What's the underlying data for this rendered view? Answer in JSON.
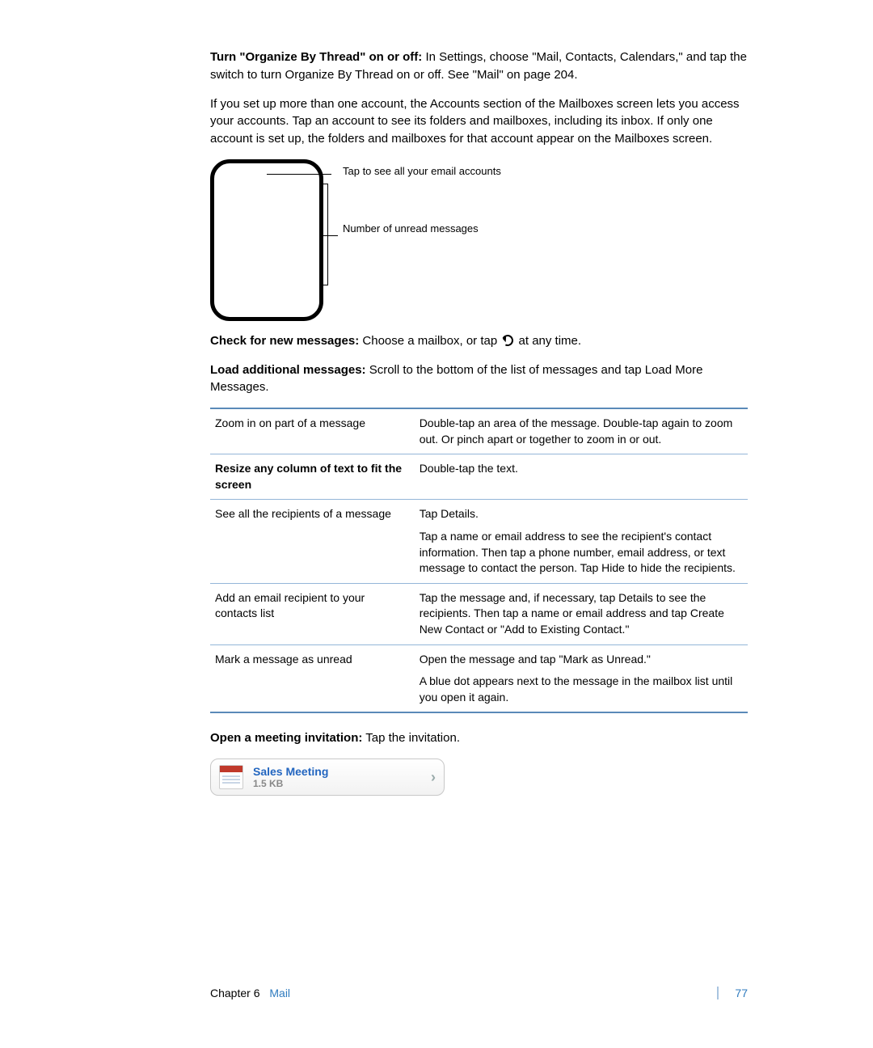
{
  "paragraphs": {
    "p1_bold": "Turn \"Organize By Thread\" on or off:",
    "p1_rest": " In Settings, choose \"Mail, Contacts, Calendars,\" and tap the switch to turn Organize By Thread on or off. See \"Mail\" on page 204.",
    "p2": "If you set up more than one account, the Accounts section of the Mailboxes screen lets you access your accounts. Tap an account to see its folders and mailboxes, including its inbox. If only one account is set up, the folders and mailboxes for that account appear on the Mailboxes screen.",
    "callout1": "Tap to see all your email accounts",
    "callout2": "Number of unread messages",
    "check_bold": "Check for new messages:",
    "check_rest_a": " Choose a mailbox, or tap ",
    "check_rest_b": " at any time.",
    "load_bold": "Load additional messages:",
    "load_rest": " Scroll to the bottom of the list of messages and tap Load More Messages.",
    "open_bold": "Open a meeting invitation:",
    "open_rest": " Tap the invitation."
  },
  "table": {
    "rows": [
      {
        "left": "Zoom in on part of a message",
        "left_bold": false,
        "right": [
          "Double-tap an area of the message. Double-tap again to zoom out. Or pinch apart or together to zoom in or out."
        ]
      },
      {
        "left": "Resize any column of text to fit the screen",
        "left_bold": true,
        "right": [
          "Double-tap the text."
        ]
      },
      {
        "left": "See all the recipients of a message",
        "left_bold": false,
        "right": [
          "Tap Details.",
          "Tap a name or email address to see the recipient's contact information. Then tap a phone number, email address, or text message to contact the person. Tap Hide to hide the recipients."
        ]
      },
      {
        "left": "Add an email recipient to your contacts list",
        "left_bold": false,
        "right": [
          "Tap the message and, if necessary, tap Details to see the recipients. Then tap a name or email address and tap Create New Contact or \"Add to Existing Contact.\""
        ]
      },
      {
        "left": "Mark a message as unread",
        "left_bold": false,
        "right": [
          "Open the message and tap \"Mark as Unread.\"",
          "A blue dot       appears next to the message in the mailbox list until you open it again."
        ]
      }
    ],
    "border_color_light": "#94b6d8",
    "border_color_heavy": "#5a8ab8"
  },
  "meeting": {
    "title": "Sales Meeting",
    "size": "1.5 KB",
    "title_color": "#2366c0"
  },
  "footer": {
    "chapter_label": "Chapter 6",
    "chapter_name": "Mail",
    "page": "77",
    "link_color": "#2f7bbf"
  }
}
